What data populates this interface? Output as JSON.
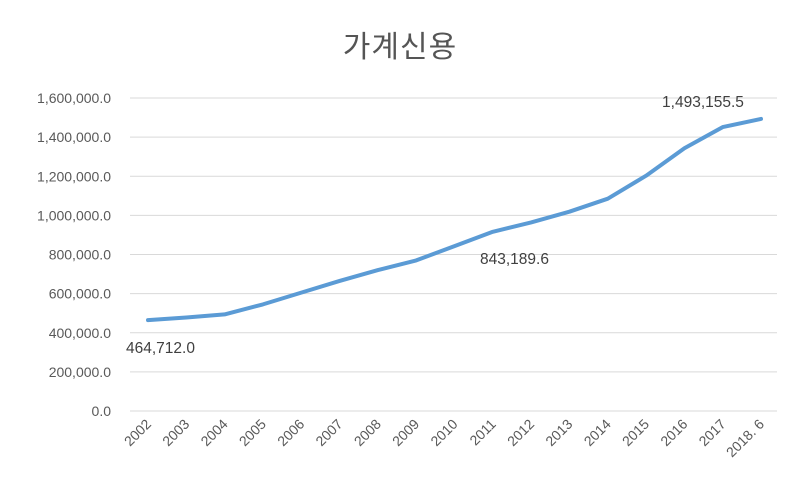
{
  "chart_data": {
    "type": "line",
    "title": "가계신용",
    "xlabel": "",
    "ylabel": "",
    "ylim": [
      0,
      1600000
    ],
    "yticks": [
      "0.0",
      "200,000.0",
      "400,000.0",
      "600,000.0",
      "800,000.0",
      "1,000,000.0",
      "1,200,000.0",
      "1,400,000.0",
      "1,600,000.0"
    ],
    "categories": [
      "2002",
      "2003",
      "2004",
      "2005",
      "2006",
      "2007",
      "2008",
      "2009",
      "2010",
      "2011",
      "2012",
      "2013",
      "2014",
      "2015",
      "2016",
      "2017",
      "2018. 6"
    ],
    "series": [
      {
        "name": "가계신용",
        "color": "#5B9BD5",
        "values": [
          464712.0,
          478000,
          494000,
          545000,
          605000,
          665000,
          720000,
          770000,
          843189.6,
          916000,
          964000,
          1019000,
          1085000,
          1203000,
          1343000,
          1451000,
          1493155.5
        ]
      }
    ],
    "data_labels": [
      {
        "category": "2002",
        "text": "464,712.0"
      },
      {
        "category": "2010",
        "text": "843,189.6"
      },
      {
        "category": "2018. 6",
        "text": "1,493,155.5"
      }
    ],
    "grid": true,
    "legend": "none"
  }
}
